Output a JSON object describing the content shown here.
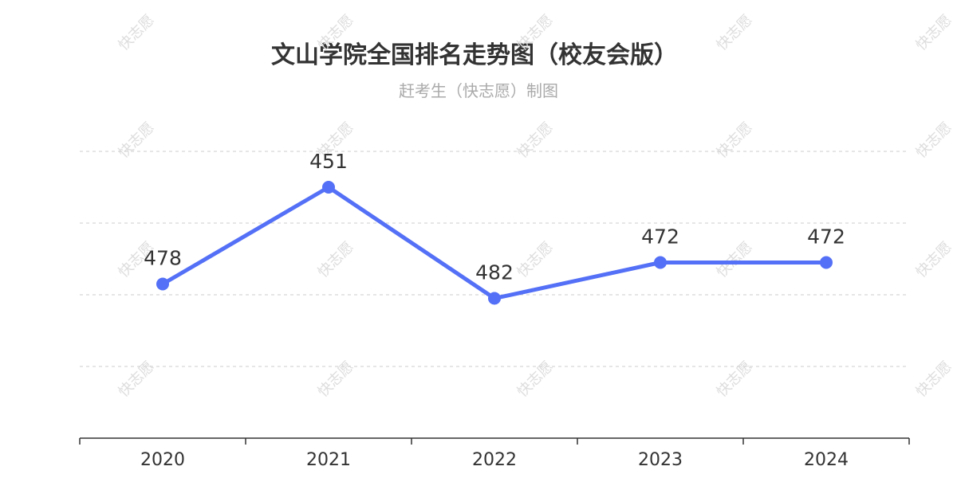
{
  "title": "文山学院全国排名走势图（校友会版）",
  "subtitle": "赶考生（快志愿）制图",
  "watermark": "快志愿",
  "colors": {
    "line": "#5470f6",
    "point": "#5470f6",
    "grid": "#cccccc",
    "text": "#333333"
  },
  "chart_data": {
    "type": "line",
    "title": "文山学院全国排名走势图（校友会版）",
    "subtitle": "赶考生（快志愿）制图",
    "categories": [
      "2020",
      "2021",
      "2022",
      "2023",
      "2024"
    ],
    "series": [
      {
        "values": [
          478,
          451,
          482,
          472,
          472
        ]
      }
    ],
    "y_inverted": true,
    "ylim": [
      441,
      521
    ],
    "grid": true,
    "legend": "none",
    "data_labels": [
      "478",
      "451",
      "482",
      "472",
      "472"
    ]
  }
}
